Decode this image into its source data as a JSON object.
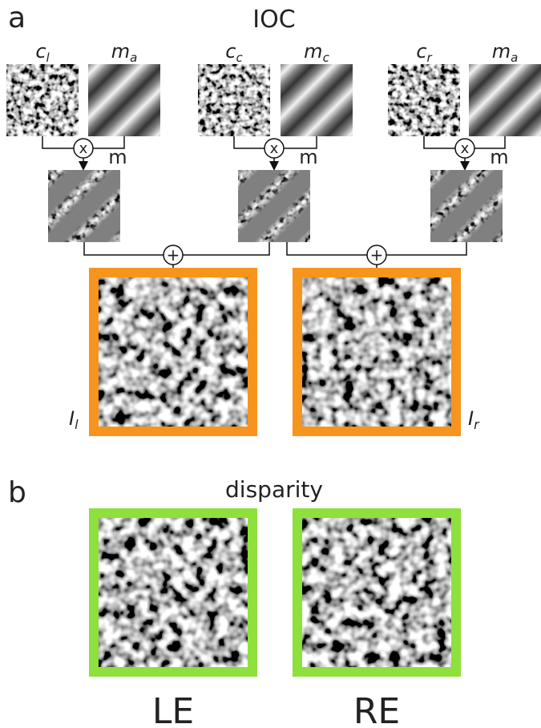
{
  "panel_a": {
    "label": "a",
    "title": "IOC",
    "inputs": [
      {
        "base": "c",
        "sub": "l"
      },
      {
        "base": "m",
        "sub": "a"
      },
      {
        "base": "c",
        "sub": "c"
      },
      {
        "base": "m",
        "sub": "c"
      },
      {
        "base": "c",
        "sub": "r"
      },
      {
        "base": "m",
        "sub": "a"
      }
    ],
    "products": [
      {
        "symbol": "x",
        "label": "m"
      },
      {
        "symbol": "x",
        "label": "m"
      },
      {
        "symbol": "x",
        "label": "m"
      }
    ],
    "sums": [
      "+",
      "+"
    ],
    "outputs": [
      {
        "base": "I",
        "sub": "l"
      },
      {
        "base": "I",
        "sub": "r"
      }
    ]
  },
  "panel_b": {
    "label": "b",
    "title": "disparity",
    "outputs": [
      "LE",
      "RE"
    ]
  }
}
